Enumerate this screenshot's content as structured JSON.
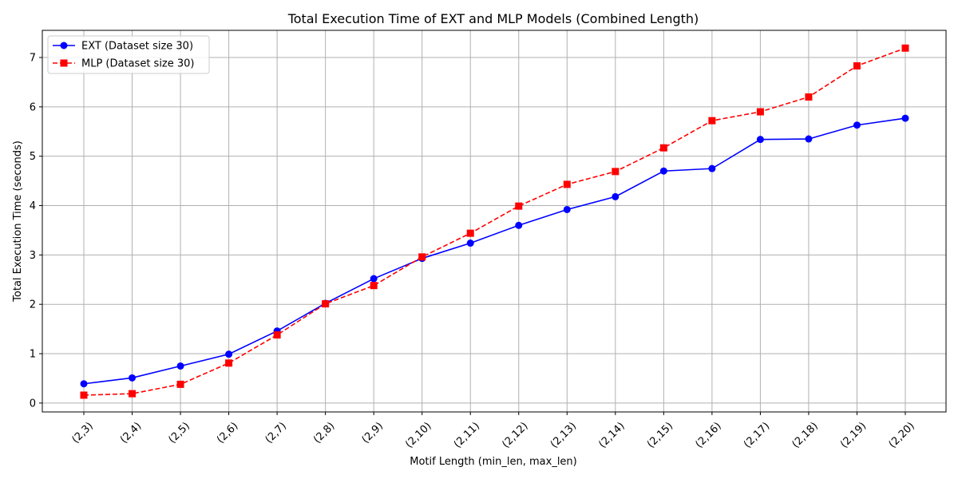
{
  "chart_data": {
    "type": "line",
    "title": "Total Execution Time of EXT and MLP Models (Combined Length)",
    "xlabel": "Motif Length (min_len, max_len)",
    "ylabel": "Total Execution Time (seconds)",
    "categories": [
      "(2,3)",
      "(2,4)",
      "(2,5)",
      "(2,6)",
      "(2,7)",
      "(2,8)",
      "(2,9)",
      "(2,10)",
      "(2,11)",
      "(2,12)",
      "(2,13)",
      "(2,14)",
      "(2,15)",
      "(2,16)",
      "(2,17)",
      "(2,18)",
      "(2,19)",
      "(2,20)"
    ],
    "yticks": [
      0,
      1,
      2,
      3,
      4,
      5,
      6,
      7
    ],
    "ylim": [
      -0.18,
      7.55
    ],
    "grid": true,
    "legend_position": "top-left",
    "series": [
      {
        "name": "EXT (Dataset size 30)",
        "color": "#0000ff",
        "linestyle": "solid",
        "marker": "circle",
        "values": [
          0.39,
          0.51,
          0.75,
          0.99,
          1.46,
          2.02,
          2.52,
          2.93,
          3.24,
          3.6,
          3.92,
          4.18,
          4.7,
          4.75,
          5.34,
          5.35,
          5.63,
          5.77
        ]
      },
      {
        "name": "MLP (Dataset size 30)",
        "color": "#ff0000",
        "linestyle": "dashed",
        "marker": "square",
        "values": [
          0.16,
          0.19,
          0.38,
          0.81,
          1.38,
          2.01,
          2.38,
          2.96,
          3.44,
          3.99,
          4.43,
          4.69,
          5.17,
          5.72,
          5.9,
          6.2,
          6.83,
          7.19
        ]
      }
    ]
  }
}
